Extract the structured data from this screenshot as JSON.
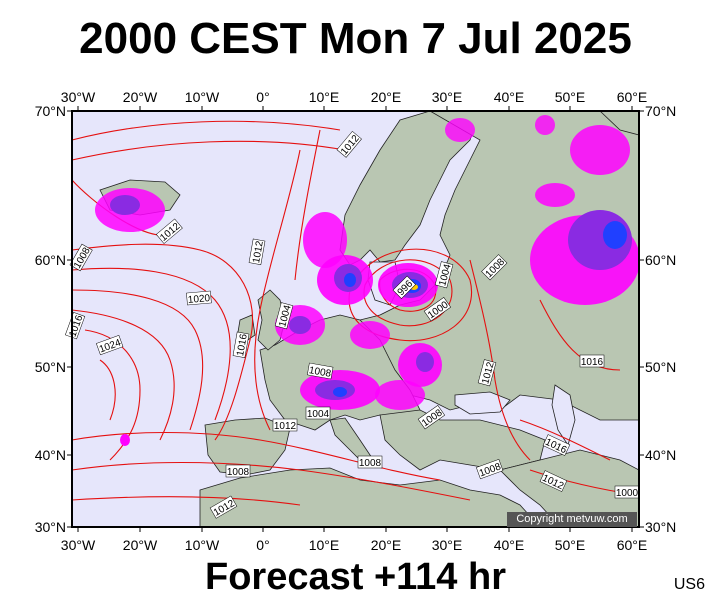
{
  "title": "2000 CEST Mon 7 Jul 2025",
  "footer": "Forecast +114 hr",
  "code": "US6",
  "copyright": "Copyright metvuw.com",
  "lon_labels": [
    "30°W",
    "20°W",
    "10°W",
    "0°",
    "10°E",
    "20°E",
    "30°E",
    "40°E",
    "50°E",
    "60°E"
  ],
  "lat_labels": [
    "70°N",
    "60°N",
    "50°N",
    "40°N",
    "30°N"
  ],
  "isobar_labels": [
    "1008",
    "1012",
    "1016",
    "1020",
    "1024",
    "1012",
    "1016",
    "1012",
    "1008",
    "1004",
    "1012",
    "1004",
    "1000",
    "996",
    "1008",
    "1004",
    "1008",
    "1012",
    "1016",
    "1008",
    "1012",
    "1016",
    "1012",
    "1008",
    "1008",
    "1000",
    "1012",
    "1016",
    "1004"
  ],
  "colors": {
    "ocean": "#e6e6fb",
    "land": "#b9c6b2",
    "isobar": "#e51010",
    "precip_light": "#ff00ff",
    "precip_mid": "#8a2be2",
    "precip_heavy": "#2040ff"
  }
}
